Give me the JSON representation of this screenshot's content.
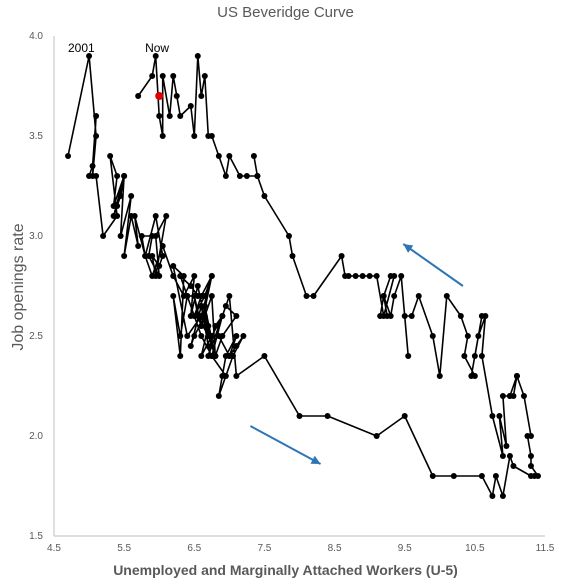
{
  "chart_data": {
    "type": "scatter",
    "title": "US Beveridge Curve",
    "xlabel": "Unemployed and Marginally Attached Workers (U-5)",
    "ylabel": "Job openings rate",
    "xlim": [
      4.5,
      11.5
    ],
    "ylim": [
      1.5,
      4.0
    ],
    "xticks": [
      "4.5",
      "5.5",
      "6.5",
      "7.5",
      "8.5",
      "9.5",
      "10.5",
      "11.5"
    ],
    "yticks": [
      "1.5",
      "2.0",
      "2.5",
      "3.0",
      "3.5",
      "4.0"
    ],
    "grid": false,
    "series": [
      {
        "color": "#000000",
        "x": [
          4.7,
          5.0,
          5.1,
          5.05,
          5.1,
          5.05,
          5.0,
          5.1,
          5.2,
          5.4,
          5.3,
          5.4,
          5.35,
          5.5,
          5.45,
          5.4,
          5.35,
          5.5,
          5.45,
          5.6,
          5.5,
          5.6,
          5.7,
          5.65,
          5.8,
          5.75,
          5.9,
          5.85,
          6.0,
          5.95,
          6.1,
          5.95,
          5.9,
          6.0,
          6.05,
          5.95,
          5.8,
          5.9,
          6.05,
          6.2,
          6.35,
          6.5,
          6.45,
          6.55,
          6.7,
          6.65,
          6.8,
          6.75,
          6.6,
          6.55,
          6.7,
          6.8,
          6.65,
          6.5,
          6.45,
          6.6,
          6.7,
          6.85,
          7.0,
          7.1,
          6.95,
          6.9,
          6.85,
          7.05,
          7.2,
          7.1,
          7.0,
          7.05,
          6.95,
          6.75,
          6.6,
          6.4,
          6.3,
          6.45,
          6.55,
          6.4,
          6.3,
          6.2,
          6.3,
          6.35,
          6.2,
          6.4,
          6.6,
          6.75,
          6.65,
          6.5,
          6.6,
          6.75,
          6.6,
          6.5,
          6.55,
          6.7,
          6.6,
          6.75,
          6.9,
          6.8,
          6.7,
          6.95,
          7.1,
          6.9,
          6.8,
          6.75,
          6.9,
          7.0,
          7.1,
          7.5,
          8.0,
          8.4,
          9.1,
          9.5,
          9.9,
          10.2,
          10.6,
          10.75,
          10.8,
          10.9,
          11.0,
          11.05,
          11.3,
          11.35,
          11.4,
          11.3,
          11.3,
          11.25,
          11.3,
          11.2,
          11.1,
          11.05,
          11.0,
          11.1,
          11.0,
          10.9,
          10.95,
          10.85,
          10.9,
          10.75,
          10.6,
          10.65,
          10.55,
          10.5,
          10.6,
          10.45,
          10.5,
          10.35,
          10.4,
          10.3,
          10.1,
          10.0,
          9.9,
          9.7,
          9.6,
          9.5,
          9.55,
          9.45,
          9.35,
          9.3,
          9.2,
          9.25,
          9.15,
          9.2,
          9.3,
          9.35,
          9.2,
          9.1,
          9.0,
          8.9,
          8.8,
          8.7,
          8.65,
          8.6,
          8.2,
          8.1,
          7.9,
          7.85,
          7.5,
          7.4,
          7.35,
          7.4,
          7.25,
          7.15,
          7.0,
          6.95,
          6.85,
          6.75,
          6.7,
          6.65,
          6.6,
          6.55,
          6.5,
          6.45,
          6.3,
          6.25,
          6.2,
          6.15,
          6.05,
          6.05,
          6.0,
          5.95,
          5.9,
          5.7
        ],
        "y": [
          3.4,
          3.9,
          3.5,
          3.3,
          3.6,
          3.35,
          3.3,
          3.3,
          3.0,
          3.1,
          3.4,
          3.3,
          3.15,
          3.3,
          3.2,
          3.15,
          3.1,
          3.3,
          3.0,
          3.2,
          2.9,
          3.1,
          2.95,
          3.1,
          2.9,
          3.0,
          3.0,
          2.9,
          2.8,
          3.0,
          3.1,
          2.8,
          2.9,
          2.85,
          2.9,
          3.1,
          2.9,
          2.8,
          2.95,
          2.8,
          2.7,
          2.8,
          2.6,
          2.75,
          2.5,
          2.65,
          2.4,
          2.7,
          2.55,
          2.6,
          2.5,
          2.4,
          2.6,
          2.5,
          2.45,
          2.65,
          2.45,
          2.5,
          2.4,
          2.5,
          2.4,
          2.3,
          2.2,
          2.4,
          2.5,
          2.45,
          2.4,
          2.4,
          2.3,
          2.4,
          2.5,
          2.7,
          2.8,
          2.75,
          2.7,
          2.7,
          2.5,
          2.7,
          2.4,
          2.8,
          2.85,
          2.5,
          2.6,
          2.8,
          2.7,
          2.6,
          2.7,
          2.8,
          2.55,
          2.7,
          2.6,
          2.55,
          2.4,
          2.5,
          2.6,
          2.55,
          2.4,
          2.65,
          2.6,
          2.5,
          2.4,
          2.4,
          2.6,
          2.7,
          2.3,
          2.4,
          2.1,
          2.1,
          2.0,
          2.1,
          1.8,
          1.8,
          1.8,
          1.7,
          1.8,
          1.7,
          1.9,
          1.85,
          1.8,
          1.8,
          1.8,
          1.85,
          1.9,
          2.0,
          2.0,
          2.2,
          2.3,
          2.2,
          2.2,
          2.3,
          2.2,
          2.2,
          1.95,
          2.1,
          1.9,
          2.1,
          2.4,
          2.6,
          2.5,
          2.4,
          2.6,
          2.3,
          2.3,
          2.4,
          2.5,
          2.6,
          2.7,
          2.3,
          2.5,
          2.7,
          2.6,
          2.6,
          2.4,
          2.8,
          2.7,
          2.6,
          2.7,
          2.6,
          2.6,
          2.7,
          2.8,
          2.8,
          2.6,
          2.8,
          2.8,
          2.8,
          2.8,
          2.8,
          2.8,
          2.9,
          2.7,
          2.7,
          2.9,
          3.0,
          3.2,
          3.3,
          3.4,
          3.3,
          3.3,
          3.3,
          3.4,
          3.3,
          3.4,
          3.5,
          3.5,
          3.8,
          3.7,
          3.9,
          3.5,
          3.65,
          3.6,
          3.7,
          3.8,
          3.6,
          3.8,
          3.5,
          3.6,
          3.9,
          3.8,
          3.7
        ]
      }
    ],
    "highlight": {
      "x": 6.0,
      "y": 3.7,
      "color": "#e00000"
    },
    "annotations": [
      {
        "text": "2001",
        "x": 4.89,
        "y": 3.94
      },
      {
        "text": "Now",
        "x": 5.97,
        "y": 3.94
      }
    ],
    "arrows": [
      {
        "color": "#2e75b6",
        "from": [
          10.33,
          2.75
        ],
        "to": [
          9.48,
          2.96
        ]
      },
      {
        "color": "#2e75b6",
        "from": [
          7.3,
          2.05
        ],
        "to": [
          8.3,
          1.86
        ]
      }
    ],
    "colors": {
      "line": "#000000",
      "axis": "#bfbfbf",
      "text": "#595959"
    }
  }
}
